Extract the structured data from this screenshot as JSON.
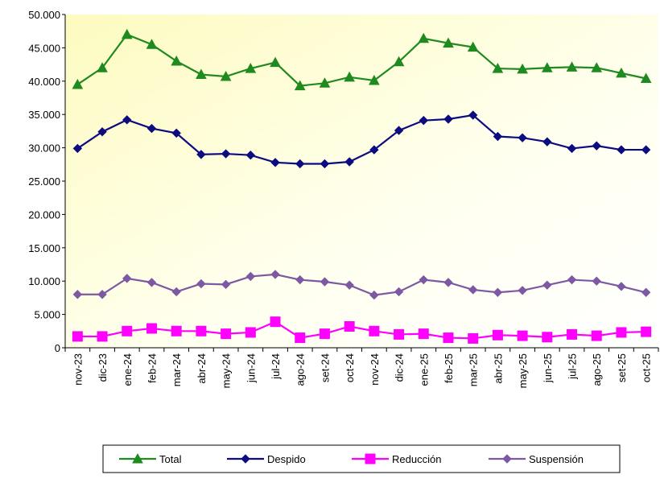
{
  "chart_data": {
    "type": "line",
    "categories": [
      "nov-23",
      "dic-23",
      "ene-24",
      "feb-24",
      "mar-24",
      "abr-24",
      "may-24",
      "jun-24",
      "jul-24",
      "ago-24",
      "set-24",
      "oct-24",
      "nov-24",
      "dic-24",
      "ene-25",
      "feb-25",
      "mar-25",
      "abr-25",
      "may-25",
      "jun-25",
      "jul-25",
      "ago-25",
      "set-25",
      "oct-25"
    ],
    "series": [
      {
        "name": "Total",
        "color": "#1f8a1f",
        "marker": "triangle",
        "values": [
          39500,
          42000,
          47000,
          45500,
          43000,
          41000,
          40700,
          41900,
          42800,
          39300,
          39700,
          40600,
          40100,
          42900,
          46400,
          45700,
          45100,
          41900,
          41800,
          42000,
          42100,
          42000,
          41200,
          40400
        ]
      },
      {
        "name": "Despido",
        "color": "#0c0c80",
        "marker": "diamond",
        "values": [
          29900,
          32400,
          34200,
          32900,
          32200,
          29000,
          29100,
          28900,
          27800,
          27600,
          27600,
          27900,
          29700,
          32600,
          34100,
          34300,
          34900,
          31700,
          31500,
          30900,
          29900,
          30300,
          29700,
          29700
        ]
      },
      {
        "name": "Reducción",
        "color": "#ff00ff",
        "marker": "square",
        "values": [
          1700,
          1700,
          2500,
          2900,
          2500,
          2500,
          2100,
          2300,
          3900,
          1500,
          2100,
          3200,
          2500,
          2000,
          2100,
          1500,
          1400,
          1900,
          1800,
          1600,
          2000,
          1800,
          2300,
          2400
        ]
      },
      {
        "name": "Suspensión",
        "color": "#7d58a3",
        "marker": "diamond",
        "values": [
          8000,
          8000,
          10400,
          9800,
          8400,
          9600,
          9500,
          10700,
          11000,
          10200,
          9900,
          9400,
          7900,
          8400,
          10200,
          9800,
          8700,
          8300,
          8600,
          9400,
          10200,
          10000,
          9200,
          8300
        ]
      }
    ],
    "ylim": [
      0,
      50000
    ],
    "yticks": [
      0,
      {
        "value": 5000,
        "label": "5.000"
      },
      {
        "value": 10000,
        "label": "10.000"
      },
      {
        "value": 15000,
        "label": "15.000"
      },
      {
        "value": 20000,
        "label": "20.000"
      },
      {
        "value": 25000,
        "label": "25.000"
      },
      {
        "value": 30000,
        "label": "30.000"
      },
      {
        "value": 35000,
        "label": "35.000"
      },
      {
        "value": 40000,
        "label": "40.000"
      },
      {
        "value": 45000,
        "label": "45.000"
      },
      {
        "value": 50000,
        "label": "50.000"
      }
    ],
    "legend": "bottom"
  }
}
